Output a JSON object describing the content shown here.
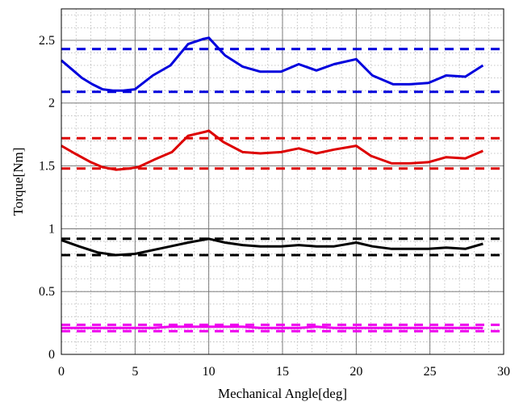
{
  "chart_data": {
    "type": "line",
    "title": "",
    "xlabel": "Mechanical Angle[deg]",
    "ylabel": "Torque[Nm]",
    "xlim": [
      0,
      30
    ],
    "ylim": [
      0,
      2.75
    ],
    "x_ticks": [
      0,
      5,
      10,
      15,
      20,
      25,
      30
    ],
    "y_ticks": [
      0,
      0.5,
      1,
      1.5,
      2,
      2.5
    ],
    "x_tick_labels": [
      "0",
      "5",
      "10",
      "15",
      "20",
      "25",
      "30"
    ],
    "y_tick_labels": [
      "0",
      "0.5",
      "1",
      "1.5",
      "2",
      "2.5"
    ],
    "grid": true,
    "minor_grid": true,
    "legend": "none",
    "series": [
      {
        "color": "#0000dd",
        "x": [
          0,
          0.7,
          1.4,
          2.1,
          2.8,
          3.5,
          4.2,
          5.0,
          6.2,
          7.4,
          8.6,
          9.6,
          10.0,
          11.1,
          12.3,
          13.5,
          14.9,
          16.1,
          17.3,
          18.5,
          20.0,
          21.1,
          22.5,
          23.6,
          24.9,
          26.1,
          27.4,
          28.6
        ],
        "y": [
          2.34,
          2.27,
          2.2,
          2.15,
          2.11,
          2.1,
          2.1,
          2.11,
          2.22,
          2.3,
          2.47,
          2.51,
          2.52,
          2.38,
          2.29,
          2.25,
          2.25,
          2.31,
          2.26,
          2.31,
          2.35,
          2.22,
          2.15,
          2.15,
          2.16,
          2.22,
          2.21,
          2.3
        ]
      },
      {
        "color": "#0000dd",
        "dashed": true,
        "x": [
          0,
          30
        ],
        "y": [
          2.43,
          2.43
        ]
      },
      {
        "color": "#0000dd",
        "dashed": true,
        "x": [
          0,
          30
        ],
        "y": [
          2.09,
          2.09
        ]
      },
      {
        "color": "#dd0000",
        "x": [
          0,
          0.9,
          2.0,
          2.8,
          3.7,
          4.6,
          5.2,
          6.3,
          7.5,
          8.6,
          9.7,
          10.0,
          11.0,
          12.3,
          13.5,
          14.9,
          16.1,
          17.3,
          18.5,
          20.0,
          21.0,
          22.4,
          23.6,
          24.9,
          26.1,
          27.4,
          28.6
        ],
        "y": [
          1.66,
          1.6,
          1.53,
          1.49,
          1.47,
          1.48,
          1.49,
          1.55,
          1.61,
          1.74,
          1.77,
          1.78,
          1.69,
          1.61,
          1.6,
          1.61,
          1.64,
          1.6,
          1.63,
          1.66,
          1.58,
          1.52,
          1.52,
          1.53,
          1.57,
          1.56,
          1.62
        ]
      },
      {
        "color": "#dd0000",
        "dashed": true,
        "x": [
          0,
          30
        ],
        "y": [
          1.72,
          1.72
        ]
      },
      {
        "color": "#dd0000",
        "dashed": true,
        "x": [
          0,
          30
        ],
        "y": [
          1.48,
          1.48
        ]
      },
      {
        "color": "#000000",
        "x": [
          0,
          1.2,
          2.5,
          3.7,
          5.0,
          6.2,
          7.4,
          8.6,
          10.0,
          11.1,
          12.3,
          13.5,
          14.9,
          16.1,
          17.3,
          18.5,
          20.0,
          21.1,
          22.4,
          23.6,
          24.9,
          26.1,
          27.4,
          28.6
        ],
        "y": [
          0.91,
          0.86,
          0.81,
          0.79,
          0.8,
          0.83,
          0.86,
          0.89,
          0.92,
          0.89,
          0.87,
          0.86,
          0.86,
          0.87,
          0.86,
          0.86,
          0.89,
          0.86,
          0.84,
          0.84,
          0.84,
          0.85,
          0.84,
          0.88
        ]
      },
      {
        "color": "#000000",
        "dashed": true,
        "x": [
          0,
          30
        ],
        "y": [
          0.92,
          0.92
        ]
      },
      {
        "color": "#000000",
        "dashed": true,
        "x": [
          0,
          30
        ],
        "y": [
          0.79,
          0.79
        ]
      },
      {
        "color": "#ee00ee",
        "x": [
          0,
          1.2,
          2.5,
          3.7,
          5.0,
          6.2,
          7.4,
          8.6,
          10.0,
          11.1,
          12.3,
          13.5,
          14.9,
          16.1,
          17.3,
          18.5,
          20.0,
          21.1,
          22.4,
          23.6,
          24.9,
          26.1,
          27.4,
          28.6
        ],
        "y": [
          0.21,
          0.21,
          0.21,
          0.21,
          0.21,
          0.21,
          0.22,
          0.22,
          0.22,
          0.22,
          0.22,
          0.21,
          0.21,
          0.21,
          0.22,
          0.21,
          0.21,
          0.21,
          0.21,
          0.21,
          0.21,
          0.21,
          0.21,
          0.21
        ]
      },
      {
        "color": "#ee00ee",
        "dashed": true,
        "x": [
          0,
          30
        ],
        "y": [
          0.235,
          0.235
        ]
      },
      {
        "color": "#ee00ee",
        "dashed": true,
        "x": [
          0,
          30
        ],
        "y": [
          0.185,
          0.185
        ]
      }
    ]
  }
}
